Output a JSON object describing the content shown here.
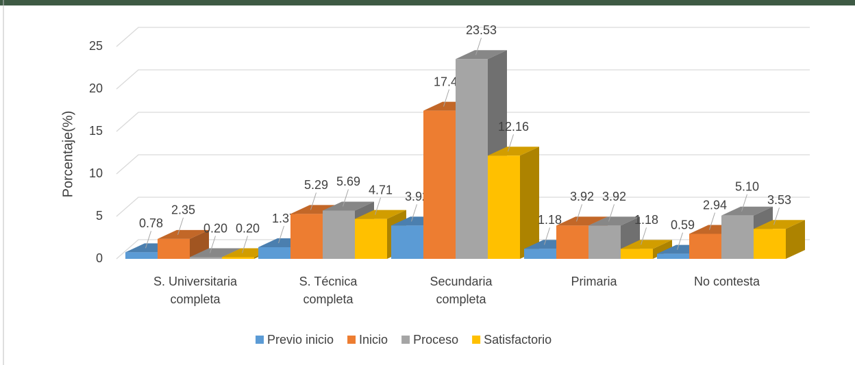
{
  "chart_data": {
    "type": "bar3d",
    "y_label": "Porcentaje(%)",
    "categories": [
      "S. Universitaria completa",
      "S. Técnica completa",
      "Secundaria completa",
      "Primaria",
      "No contesta"
    ],
    "series": [
      {
        "name": "Previo inicio",
        "color": "#5b9bd5",
        "values": [
          0.78,
          1.37,
          3.92,
          1.18,
          0.59
        ],
        "value_labels": [
          "0.78",
          "1.37",
          "3.92",
          "1.18",
          "0.59"
        ]
      },
      {
        "name": "Inicio",
        "color": "#ed7d31",
        "values": [
          2.35,
          5.29,
          17.45,
          3.92,
          2.94
        ],
        "value_labels": [
          "2.35",
          "5.29",
          "17.45",
          "3.92",
          "2.94"
        ]
      },
      {
        "name": "Proceso",
        "color": "#a5a5a5",
        "values": [
          0.2,
          5.69,
          23.53,
          3.92,
          5.1
        ],
        "value_labels": [
          "0.20",
          "5.69",
          "23.53",
          "3.92",
          "5.10"
        ]
      },
      {
        "name": "Satisfactorio",
        "color": "#ffc000",
        "values": [
          0.2,
          4.71,
          12.16,
          1.18,
          3.53
        ],
        "value_labels": [
          "0.20",
          "4.71",
          "12.16",
          "1.18",
          "3.53"
        ]
      }
    ],
    "ylim": [
      0,
      25
    ],
    "yticks": [
      0,
      5,
      10,
      15,
      20,
      25
    ],
    "grid": true,
    "legend": "bottom"
  }
}
